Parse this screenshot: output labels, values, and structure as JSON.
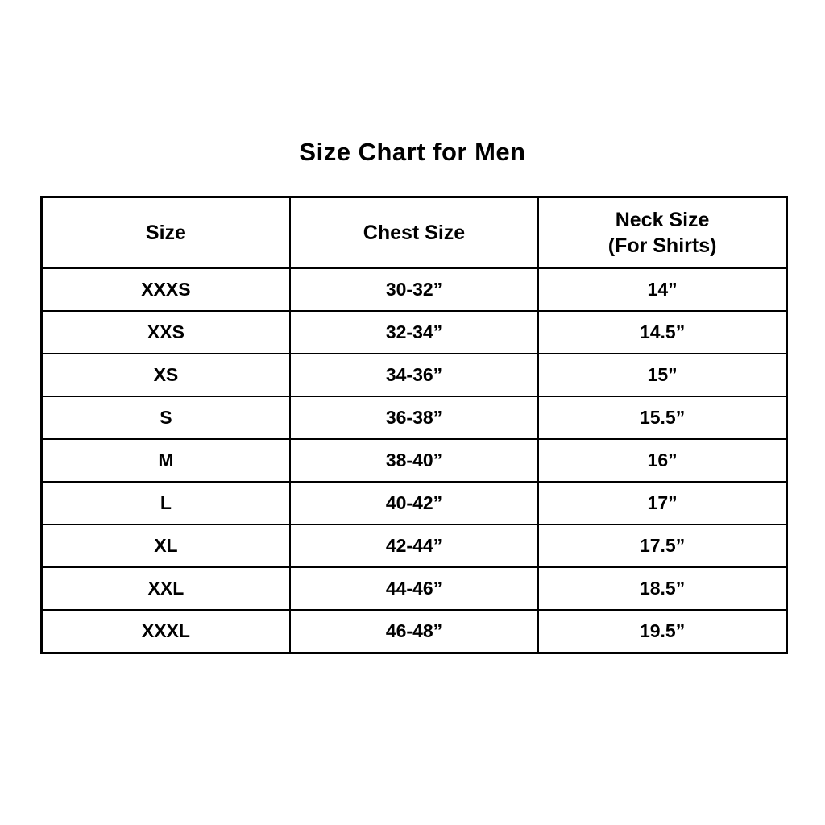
{
  "page": {
    "title": "Size Chart for Men"
  },
  "colors": {
    "background": "#ffffff",
    "text": "#000000",
    "border": "#000000"
  },
  "table": {
    "headers": [
      "Size",
      "Chest Size",
      "Neck Size"
    ],
    "header_sub": "(For Shirts)",
    "rows": [
      [
        "XXXS",
        "30-32”",
        "14”"
      ],
      [
        "XXS",
        "32-34”",
        "14.5”"
      ],
      [
        "XS",
        "34-36”",
        "15”"
      ],
      [
        "S",
        "36-38”",
        "15.5”"
      ],
      [
        "M",
        "38-40”",
        "16”"
      ],
      [
        "L",
        "40-42”",
        "17”"
      ],
      [
        "XL",
        "42-44”",
        "17.5”"
      ],
      [
        "XXL",
        "44-46”",
        "18.5”"
      ],
      [
        "XXXL",
        "46-48”",
        "19.5”"
      ]
    ]
  },
  "chart_data": {
    "type": "table",
    "title": "Size Chart for Men",
    "columns": [
      "Size",
      "Chest Size",
      "Neck Size (For Shirts)"
    ],
    "rows": [
      [
        "XXXS",
        "30-32”",
        "14”"
      ],
      [
        "XXS",
        "32-34”",
        "14.5”"
      ],
      [
        "XS",
        "34-36”",
        "15”"
      ],
      [
        "S",
        "36-38”",
        "15.5”"
      ],
      [
        "M",
        "38-40”",
        "16”"
      ],
      [
        "L",
        "40-42”",
        "17”"
      ],
      [
        "XL",
        "42-44”",
        "17.5”"
      ],
      [
        "XXL",
        "44-46”",
        "18.5”"
      ],
      [
        "XXXL",
        "46-48”",
        "19.5”"
      ]
    ]
  }
}
